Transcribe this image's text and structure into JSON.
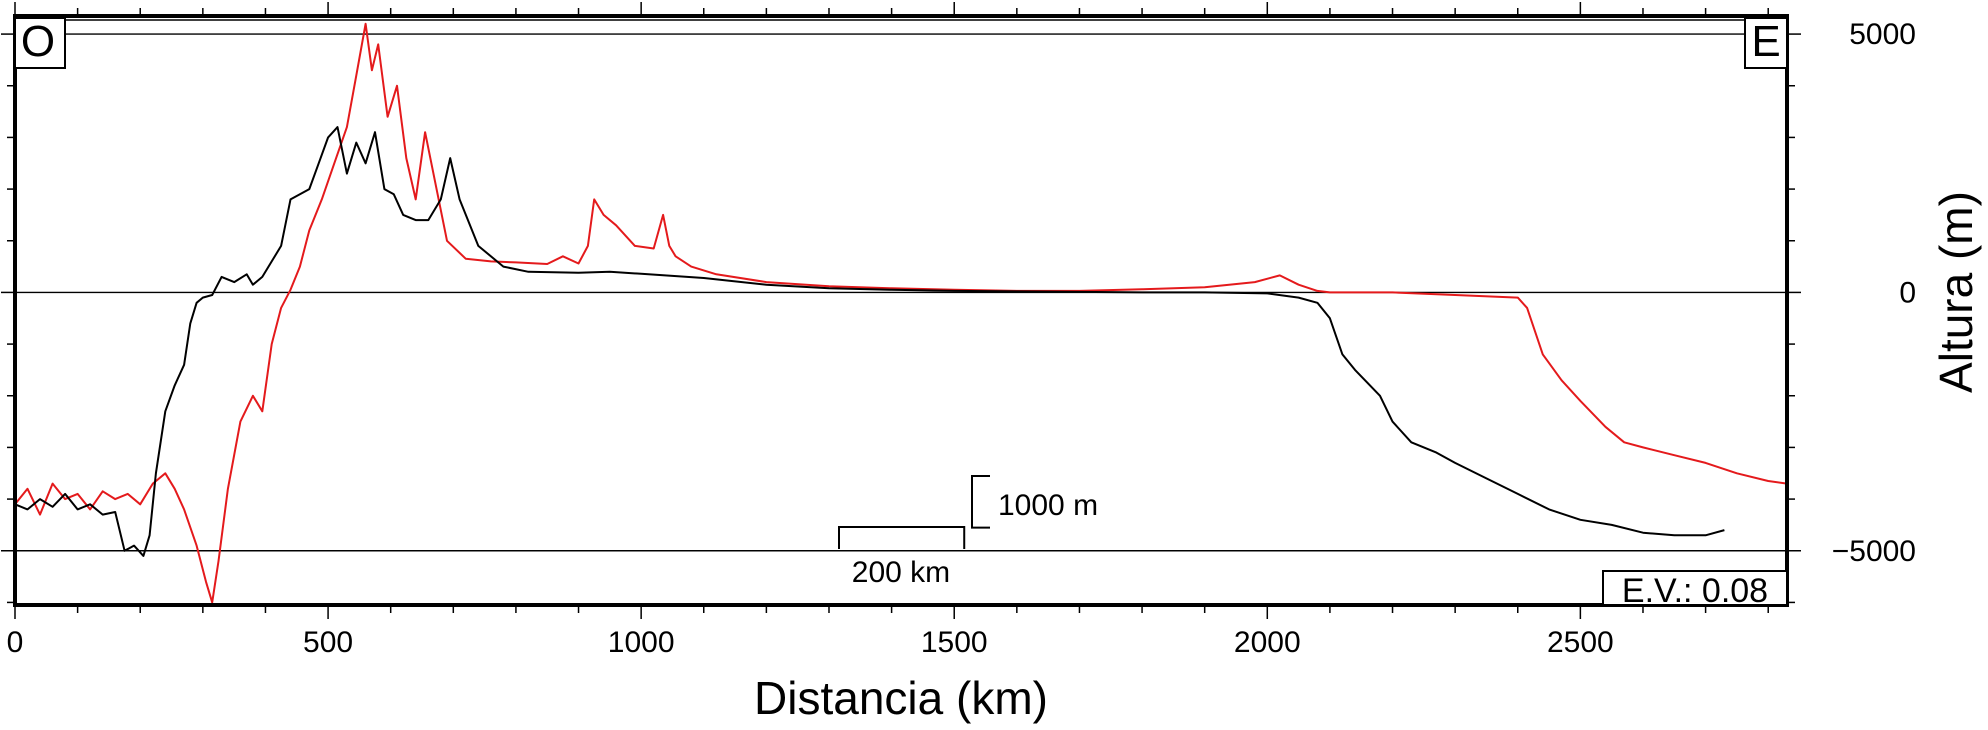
{
  "chart_data": {
    "type": "line",
    "xlabel": "Distancia (km)",
    "ylabel": "Altura (m)",
    "xlim": [
      0,
      2830
    ],
    "ylim": [
      -6050,
      5350
    ],
    "x_ticks": [
      0,
      500,
      1000,
      1500,
      2000,
      2500
    ],
    "x_tick_labels": [
      "0",
      "500",
      "1000",
      "1500",
      "2000",
      "2500"
    ],
    "y_ticks": [
      5000,
      0,
      -5000
    ],
    "y_tick_labels": [
      "5000",
      "0",
      "−5000"
    ],
    "reference_lines": [
      5000,
      0,
      -5000
    ],
    "corner_labels": {
      "left": "O",
      "right": "E"
    },
    "vertical_exaggeration": "E.V.: 0.08",
    "scale_bars": {
      "horizontal_label": "200 km",
      "horizontal_km": 200,
      "vertical_label": "1000 m",
      "vertical_m": 1000
    },
    "series": [
      {
        "color": "#e41a1c",
        "x": [
          0,
          20,
          40,
          60,
          80,
          100,
          120,
          140,
          160,
          180,
          200,
          220,
          240,
          255,
          270,
          290,
          305,
          315,
          325,
          340,
          360,
          380,
          395,
          410,
          425,
          440,
          455,
          470,
          490,
          510,
          530,
          545,
          560,
          570,
          580,
          595,
          610,
          625,
          640,
          655,
          670,
          690,
          720,
          760,
          800,
          850,
          875,
          900,
          915,
          925,
          940,
          960,
          990,
          1020,
          1035,
          1045,
          1055,
          1080,
          1120,
          1200,
          1300,
          1400,
          1500,
          1600,
          1700,
          1800,
          1900,
          1980,
          2020,
          2050,
          2080,
          2100,
          2200,
          2300,
          2400,
          2415,
          2440,
          2470,
          2500,
          2540,
          2570,
          2600,
          2650,
          2700,
          2750,
          2800,
          2830
        ],
        "y": [
          -4100,
          -3800,
          -4300,
          -3700,
          -4000,
          -3900,
          -4200,
          -3850,
          -4000,
          -3900,
          -4100,
          -3700,
          -3500,
          -3800,
          -4200,
          -4900,
          -5600,
          -6000,
          -5200,
          -3800,
          -2500,
          -2000,
          -2300,
          -1000,
          -300,
          50,
          500,
          1200,
          1800,
          2500,
          3200,
          4200,
          5200,
          4300,
          4800,
          3400,
          4000,
          2600,
          1800,
          3100,
          2200,
          1000,
          650,
          600,
          580,
          550,
          700,
          560,
          900,
          1800,
          1500,
          1300,
          900,
          850,
          1500,
          900,
          700,
          500,
          350,
          200,
          120,
          80,
          50,
          30,
          30,
          60,
          100,
          200,
          330,
          150,
          30,
          0,
          0,
          -50,
          -100,
          -300,
          -1200,
          -1700,
          -2100,
          -2600,
          -2900,
          -3000,
          -3150,
          -3300,
          -3500,
          -3650,
          -3700
        ]
      },
      {
        "color": "#000000",
        "x": [
          0,
          20,
          40,
          60,
          80,
          100,
          120,
          140,
          160,
          175,
          190,
          205,
          215,
          225,
          240,
          255,
          270,
          280,
          290,
          300,
          315,
          330,
          350,
          370,
          380,
          395,
          410,
          425,
          440,
          455,
          470,
          485,
          500,
          515,
          530,
          545,
          560,
          575,
          590,
          605,
          620,
          640,
          660,
          680,
          695,
          710,
          740,
          780,
          820,
          900,
          950,
          1000,
          1100,
          1200,
          1300,
          1400,
          1500,
          1600,
          1700,
          1800,
          1900,
          2000,
          2050,
          2080,
          2100,
          2120,
          2140,
          2180,
          2200,
          2230,
          2270,
          2300,
          2350,
          2400,
          2450,
          2500,
          2550,
          2600,
          2650,
          2700,
          2730
        ],
        "y": [
          -4100,
          -4200,
          -4000,
          -4150,
          -3900,
          -4200,
          -4100,
          -4300,
          -4250,
          -5000,
          -4900,
          -5100,
          -4700,
          -3500,
          -2300,
          -1800,
          -1400,
          -600,
          -200,
          -100,
          -50,
          300,
          200,
          350,
          150,
          300,
          600,
          900,
          1800,
          1900,
          2000,
          2500,
          3000,
          3200,
          2300,
          2900,
          2500,
          3100,
          2000,
          1900,
          1500,
          1400,
          1400,
          1800,
          2600,
          1800,
          900,
          500,
          400,
          380,
          400,
          360,
          280,
          150,
          80,
          50,
          30,
          20,
          10,
          0,
          0,
          -20,
          -100,
          -200,
          -500,
          -1200,
          -1500,
          -2000,
          -2500,
          -2900,
          -3100,
          -3300,
          -3600,
          -3900,
          -4200,
          -4400,
          -4500,
          -4650,
          -4700,
          -4700,
          -4600
        ]
      }
    ]
  }
}
